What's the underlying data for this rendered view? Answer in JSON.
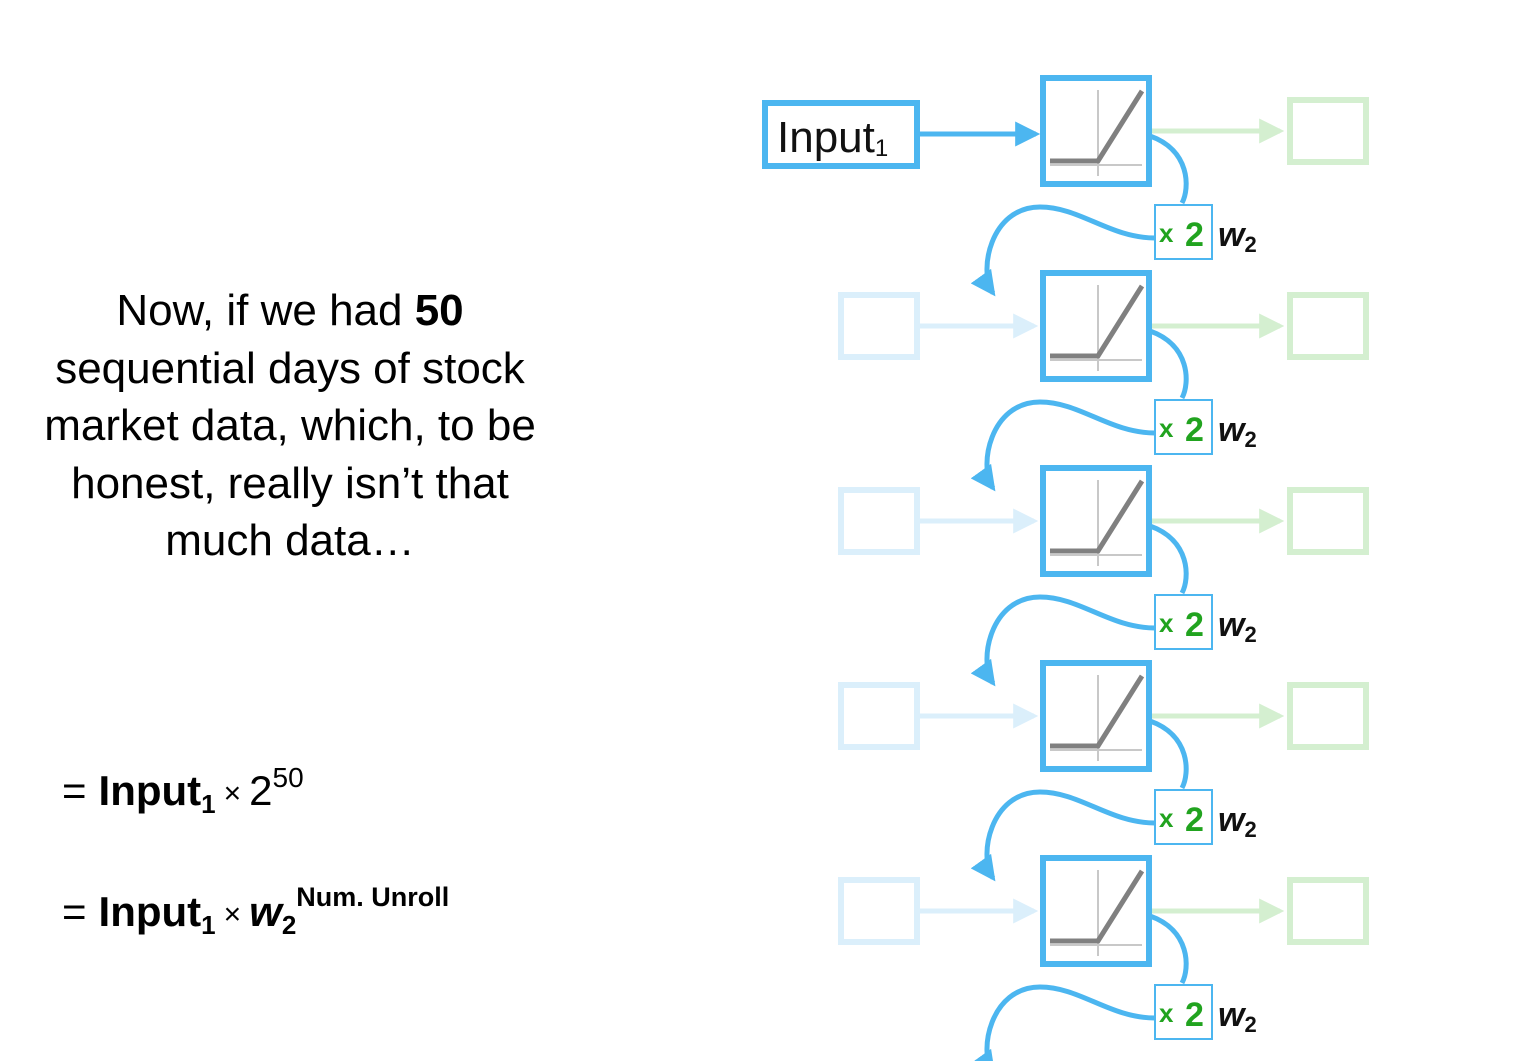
{
  "narration": {
    "line1_pre": "Now, if we had ",
    "line1_bold": "50",
    "line2": "sequential days of stock",
    "line3": "market data, which, to be",
    "line4": "honest, really isn’t that",
    "line5": "much data…"
  },
  "formulas": [
    {
      "eq": "=",
      "input_name": "Input",
      "input_sub": "1",
      "times": "×",
      "base": "2",
      "exponent": "50"
    },
    {
      "eq": "=",
      "input_name": "Input",
      "input_sub": "1",
      "times": "×",
      "weight_name": "w",
      "weight_sub": "2",
      "exponent": "Num. Unroll"
    }
  ],
  "diagram": {
    "input_label": "Input",
    "input_sub": "1",
    "multiplier_prefix": "x",
    "multiplier_value": "2",
    "weight_name": "w",
    "weight_sub": "2",
    "unroll_count_visible": 5,
    "colors": {
      "active_blue": "#4cb6f0",
      "faded_blue": "#dbeffb",
      "faded_green": "#d4efd0",
      "relu_gray": "#808080",
      "multiplier_green": "#21a31f"
    }
  }
}
